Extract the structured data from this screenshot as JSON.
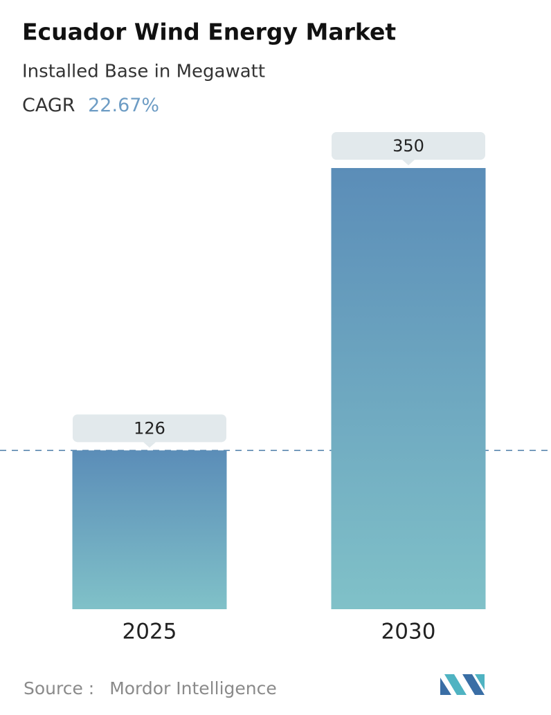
{
  "chart_data": {
    "type": "bar",
    "title": "Ecuador Wind Energy Market",
    "subtitle": "Installed Base in Megawatt",
    "cagr_label": "CAGR",
    "cagr_value": "22.67%",
    "categories": [
      "2025",
      "2030"
    ],
    "values": [
      126,
      350
    ],
    "color_top": "#5b8db8",
    "color_bottom": "#80c1c8",
    "source_label": "Source :",
    "source": "Mordor Intelligence"
  }
}
